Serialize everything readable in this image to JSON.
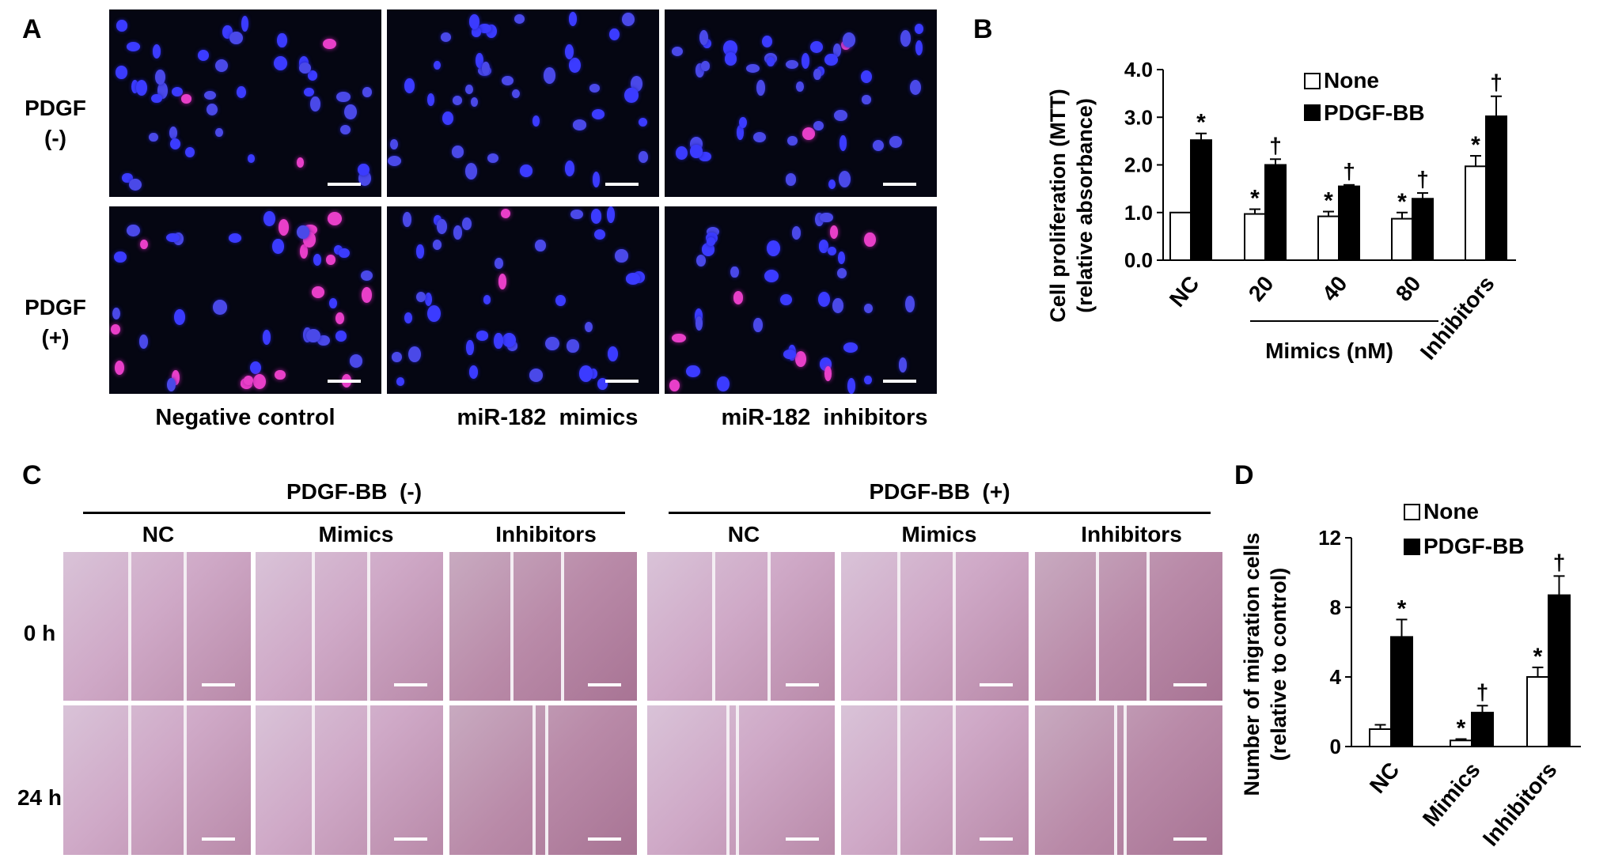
{
  "panel_a": {
    "label": "A",
    "row_labels": [
      [
        "PDGF",
        "(-)"
      ],
      [
        "PDGF",
        "(+)"
      ]
    ],
    "column_labels": [
      "Negative control",
      "miR-182  mimics",
      "miR-182  inhibitors"
    ]
  },
  "panel_b": {
    "label": "B",
    "ylabel_line1": "Cell proliferation (MTT)",
    "ylabel_line2": "(relative absorbance)",
    "ticks": [
      "0.0",
      "1.0",
      "2.0",
      "3.0",
      "4.0"
    ],
    "categories": [
      "NC",
      "20",
      "40",
      "80",
      "Inhibitors"
    ],
    "group_label": "Mimics (nM)",
    "legend": [
      "None",
      "PDGF-BB"
    ]
  },
  "panel_c": {
    "label": "C",
    "group_headers": [
      "PDGF-BB  (-)",
      "PDGF-BB  (+)"
    ],
    "column_labels": [
      "NC",
      "Mimics",
      "Inhibitors",
      "NC",
      "Mimics",
      "Inhibitors"
    ],
    "row_labels": [
      "0 h",
      "24 h"
    ]
  },
  "panel_d": {
    "label": "D",
    "ylabel_line1": "Number of migration cells",
    "ylabel_line2": "(relative to control)",
    "ticks": [
      "0",
      "4",
      "8",
      "12"
    ],
    "categories": [
      "NC",
      "Mimics",
      "Inhibitors"
    ],
    "legend": [
      "None",
      "PDGF-BB"
    ]
  },
  "chart_data": [
    {
      "type": "bar",
      "panel": "B",
      "categories": [
        "NC",
        "20",
        "40",
        "80",
        "Inhibitors"
      ],
      "series": [
        {
          "name": "None",
          "color": "#ffffff",
          "values": [
            1.0,
            0.97,
            0.92,
            0.87,
            1.97
          ],
          "errors": [
            0.0,
            0.1,
            0.1,
            0.13,
            0.22
          ]
        },
        {
          "name": "PDGF-BB",
          "color": "#000000",
          "values": [
            2.52,
            2.0,
            1.55,
            1.29,
            3.02
          ],
          "errors": [
            0.14,
            0.12,
            0.03,
            0.12,
            0.42
          ]
        }
      ],
      "markers_none": [
        "",
        "*",
        "*",
        "*",
        "*"
      ],
      "markers_pdgf": [
        "*",
        "†",
        "†",
        "†",
        "†"
      ],
      "ylabel": "Cell proliferation (MTT) (relative absorbance)",
      "ylim": [
        0,
        4
      ],
      "legend_position": "top-right"
    },
    {
      "type": "bar",
      "panel": "D",
      "categories": [
        "NC",
        "Mimics",
        "Inhibitors"
      ],
      "series": [
        {
          "name": "None",
          "color": "#ffffff",
          "values": [
            1.0,
            0.35,
            4.0
          ],
          "errors": [
            0.25,
            0.08,
            0.55
          ]
        },
        {
          "name": "PDGF-BB",
          "color": "#000000",
          "values": [
            6.3,
            1.95,
            8.7
          ],
          "errors": [
            1.0,
            0.4,
            1.1
          ]
        }
      ],
      "markers_none": [
        "",
        "*",
        "*"
      ],
      "markers_pdgf": [
        "*",
        "†",
        "†"
      ],
      "ylabel": "Number of migration cells (relative to control)",
      "ylim": [
        0,
        12
      ],
      "legend_position": "top-right"
    }
  ]
}
